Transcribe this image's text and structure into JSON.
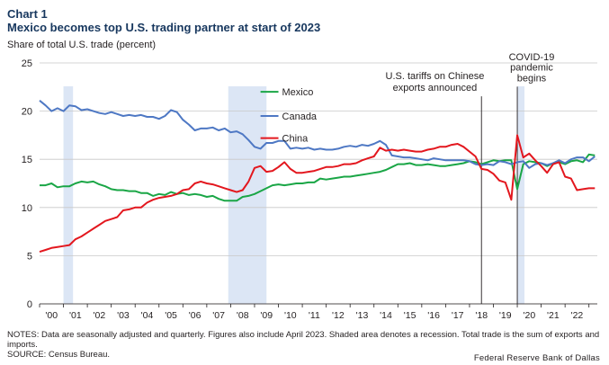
{
  "chart_label": "Chart 1",
  "chart_data": {
    "type": "line",
    "title": "Chart 1",
    "subtitle": "Mexico becomes top U.S. trading partner at start of 2023",
    "ylabel": "Share of total U.S. trade (percent)",
    "xlabel": "",
    "ylim": [
      0,
      25
    ],
    "y_ticks": [
      0,
      5,
      10,
      15,
      20,
      25
    ],
    "xlim": [
      2000,
      2023.35
    ],
    "x_ticks": [
      {
        "label": "'00",
        "value": 2000.5
      },
      {
        "label": "'01",
        "value": 2001.5
      },
      {
        "label": "'02",
        "value": 2002.5
      },
      {
        "label": "'03",
        "value": 2003.5
      },
      {
        "label": "'04",
        "value": 2004.5
      },
      {
        "label": "'05",
        "value": 2005.5
      },
      {
        "label": "'06",
        "value": 2006.5
      },
      {
        "label": "'07",
        "value": 2007.5
      },
      {
        "label": "'08",
        "value": 2008.5
      },
      {
        "label": "'09",
        "value": 2009.5
      },
      {
        "label": "'10",
        "value": 2010.5
      },
      {
        "label": "'11",
        "value": 2011.5
      },
      {
        "label": "'12",
        "value": 2012.5
      },
      {
        "label": "'13",
        "value": 2013.5
      },
      {
        "label": "'14",
        "value": 2014.5
      },
      {
        "label": "'15",
        "value": 2015.5
      },
      {
        "label": "'16",
        "value": 2016.5
      },
      {
        "label": "'17",
        "value": 2017.5
      },
      {
        "label": "'18",
        "value": 2018.5
      },
      {
        "label": "'19",
        "value": 2019.5
      },
      {
        "label": "'20",
        "value": 2020.5
      },
      {
        "label": "'21",
        "value": 2021.5
      },
      {
        "label": "'22",
        "value": 2022.5
      }
    ],
    "recessions": [
      {
        "start": 2001.0,
        "end": 2001.4
      },
      {
        "start": 2007.9,
        "end": 2009.5
      },
      {
        "start": 2020.0,
        "end": 2020.3
      }
    ],
    "events": [
      {
        "x": 2018.5,
        "label_lines": [
          "U.S. tariffs on Chinese",
          "exports announced"
        ],
        "label_x": 2016.55,
        "label_y_lines": [
          23.3,
          22.1
        ]
      },
      {
        "x": 2020.0,
        "label_lines": [
          "COVID-19",
          "pandemic",
          "begins"
        ],
        "label_x": 2020.6,
        "label_y_lines": [
          25.3,
          24.2,
          23.1
        ]
      }
    ],
    "legend": {
      "placement": "top-center",
      "entries": [
        {
          "name": "Mexico",
          "line_x": [
            2009.25,
            2010.0
          ],
          "y": 22.0
        },
        {
          "name": "Canada",
          "line_x": [
            2009.25,
            2010.0
          ],
          "y": 19.5
        },
        {
          "name": "China",
          "line_x": [
            2009.25,
            2010.0
          ],
          "y": 17.2
        }
      ]
    },
    "series": [
      {
        "name": "Mexico",
        "color": "#1aa646",
        "x": [
          2000.0,
          2000.25,
          2000.5,
          2000.75,
          2001.0,
          2001.25,
          2001.5,
          2001.75,
          2002.0,
          2002.25,
          2002.5,
          2002.75,
          2003.0,
          2003.25,
          2003.5,
          2003.75,
          2004.0,
          2004.25,
          2004.5,
          2004.75,
          2005.0,
          2005.25,
          2005.5,
          2005.75,
          2006.0,
          2006.25,
          2006.5,
          2006.75,
          2007.0,
          2007.25,
          2007.5,
          2007.75,
          2008.0,
          2008.25,
          2008.5,
          2008.75,
          2009.0,
          2009.25,
          2009.5,
          2009.75,
          2010.0,
          2010.25,
          2010.5,
          2010.75,
          2011.0,
          2011.25,
          2011.5,
          2011.75,
          2012.0,
          2012.25,
          2012.5,
          2012.75,
          2013.0,
          2013.25,
          2013.5,
          2013.75,
          2014.0,
          2014.25,
          2014.5,
          2014.75,
          2015.0,
          2015.25,
          2015.5,
          2015.75,
          2016.0,
          2016.25,
          2016.5,
          2016.75,
          2017.0,
          2017.25,
          2017.5,
          2017.75,
          2018.0,
          2018.25,
          2018.5,
          2018.75,
          2019.0,
          2019.25,
          2019.5,
          2019.75,
          2020.0,
          2020.25,
          2020.5,
          2020.75,
          2021.0,
          2021.25,
          2021.5,
          2021.75,
          2022.0,
          2022.25,
          2022.5,
          2022.75,
          2023.0,
          2023.25
        ],
        "values": [
          12.3,
          12.3,
          12.5,
          12.1,
          12.2,
          12.2,
          12.5,
          12.7,
          12.6,
          12.7,
          12.4,
          12.2,
          11.9,
          11.8,
          11.8,
          11.7,
          11.7,
          11.5,
          11.5,
          11.2,
          11.4,
          11.3,
          11.6,
          11.4,
          11.5,
          11.3,
          11.4,
          11.3,
          11.1,
          11.2,
          10.9,
          10.7,
          10.7,
          10.7,
          11.1,
          11.2,
          11.4,
          11.7,
          12.0,
          12.3,
          12.4,
          12.3,
          12.4,
          12.5,
          12.5,
          12.6,
          12.6,
          13.0,
          12.9,
          13.0,
          13.1,
          13.2,
          13.2,
          13.3,
          13.4,
          13.5,
          13.6,
          13.7,
          13.9,
          14.2,
          14.5,
          14.5,
          14.6,
          14.4,
          14.4,
          14.5,
          14.4,
          14.3,
          14.3,
          14.4,
          14.5,
          14.6,
          14.8,
          14.7,
          14.5,
          14.7,
          14.9,
          14.8,
          14.9,
          14.9,
          11.9,
          14.5,
          14.8,
          14.7,
          14.6,
          14.3,
          14.6,
          14.7,
          14.5,
          14.8,
          14.9,
          14.7,
          15.5,
          15.4
        ]
      },
      {
        "name": "Canada",
        "color": "#4e78c4",
        "x": [
          2000.0,
          2000.25,
          2000.5,
          2000.75,
          2001.0,
          2001.25,
          2001.5,
          2001.75,
          2002.0,
          2002.25,
          2002.5,
          2002.75,
          2003.0,
          2003.25,
          2003.5,
          2003.75,
          2004.0,
          2004.25,
          2004.5,
          2004.75,
          2005.0,
          2005.25,
          2005.5,
          2005.75,
          2006.0,
          2006.25,
          2006.5,
          2006.75,
          2007.0,
          2007.25,
          2007.5,
          2007.75,
          2008.0,
          2008.25,
          2008.5,
          2008.75,
          2009.0,
          2009.25,
          2009.5,
          2009.75,
          2010.0,
          2010.25,
          2010.5,
          2010.75,
          2011.0,
          2011.25,
          2011.5,
          2011.75,
          2012.0,
          2012.25,
          2012.5,
          2012.75,
          2013.0,
          2013.25,
          2013.5,
          2013.75,
          2014.0,
          2014.25,
          2014.5,
          2014.75,
          2015.0,
          2015.25,
          2015.5,
          2015.75,
          2016.0,
          2016.25,
          2016.5,
          2016.75,
          2017.0,
          2017.25,
          2017.5,
          2017.75,
          2018.0,
          2018.25,
          2018.5,
          2018.75,
          2019.0,
          2019.25,
          2019.5,
          2019.75,
          2020.0,
          2020.25,
          2020.5,
          2020.75,
          2021.0,
          2021.25,
          2021.5,
          2021.75,
          2022.0,
          2022.25,
          2022.5,
          2022.75,
          2023.0,
          2023.25
        ],
        "values": [
          21.1,
          20.6,
          20.0,
          20.3,
          20.0,
          20.6,
          20.5,
          20.1,
          20.2,
          20.0,
          19.8,
          19.7,
          19.9,
          19.7,
          19.5,
          19.6,
          19.5,
          19.6,
          19.4,
          19.4,
          19.2,
          19.5,
          20.1,
          19.9,
          19.1,
          18.6,
          18.0,
          18.2,
          18.2,
          18.3,
          18.0,
          18.2,
          17.8,
          17.9,
          17.6,
          17.0,
          16.3,
          16.1,
          16.7,
          16.7,
          16.9,
          16.9,
          16.1,
          16.2,
          16.1,
          16.2,
          16.0,
          16.1,
          16.0,
          16.0,
          16.1,
          16.3,
          16.4,
          16.3,
          16.5,
          16.4,
          16.6,
          16.9,
          16.5,
          15.4,
          15.3,
          15.2,
          15.2,
          15.1,
          15.0,
          14.9,
          15.1,
          15.0,
          14.9,
          14.9,
          14.9,
          14.9,
          14.8,
          14.5,
          14.4,
          14.5,
          14.4,
          14.8,
          14.7,
          14.5,
          14.7,
          14.8,
          14.1,
          14.5,
          14.6,
          14.4,
          14.6,
          14.9,
          14.6,
          15.0,
          15.2,
          15.2,
          14.8,
          15.3
        ]
      },
      {
        "name": "China",
        "color": "#e3171e",
        "x": [
          2000.0,
          2000.25,
          2000.5,
          2000.75,
          2001.0,
          2001.25,
          2001.5,
          2001.75,
          2002.0,
          2002.25,
          2002.5,
          2002.75,
          2003.0,
          2003.25,
          2003.5,
          2003.75,
          2004.0,
          2004.25,
          2004.5,
          2004.75,
          2005.0,
          2005.25,
          2005.5,
          2005.75,
          2006.0,
          2006.25,
          2006.5,
          2006.75,
          2007.0,
          2007.25,
          2007.5,
          2007.75,
          2008.0,
          2008.25,
          2008.5,
          2008.75,
          2009.0,
          2009.25,
          2009.5,
          2009.75,
          2010.0,
          2010.25,
          2010.5,
          2010.75,
          2011.0,
          2011.25,
          2011.5,
          2011.75,
          2012.0,
          2012.25,
          2012.5,
          2012.75,
          2013.0,
          2013.25,
          2013.5,
          2013.75,
          2014.0,
          2014.25,
          2014.5,
          2014.75,
          2015.0,
          2015.25,
          2015.5,
          2015.75,
          2016.0,
          2016.25,
          2016.5,
          2016.75,
          2017.0,
          2017.25,
          2017.5,
          2017.75,
          2018.0,
          2018.25,
          2018.5,
          2018.75,
          2019.0,
          2019.25,
          2019.5,
          2019.75,
          2020.0,
          2020.25,
          2020.5,
          2020.75,
          2021.0,
          2021.25,
          2021.5,
          2021.75,
          2022.0,
          2022.25,
          2022.5,
          2022.75,
          2023.0,
          2023.25
        ],
        "values": [
          5.4,
          5.6,
          5.8,
          5.9,
          6.0,
          6.1,
          6.7,
          7.0,
          7.4,
          7.8,
          8.2,
          8.6,
          8.8,
          9.0,
          9.7,
          9.8,
          10.0,
          10.0,
          10.5,
          10.8,
          11.0,
          11.1,
          11.2,
          11.4,
          11.8,
          11.9,
          12.5,
          12.7,
          12.5,
          12.4,
          12.2,
          12.0,
          11.8,
          11.6,
          11.8,
          12.7,
          14.1,
          14.3,
          13.7,
          13.8,
          14.2,
          14.7,
          14.0,
          13.6,
          13.6,
          13.7,
          13.8,
          14.0,
          14.2,
          14.2,
          14.3,
          14.5,
          14.5,
          14.6,
          14.9,
          15.1,
          15.3,
          16.2,
          15.9,
          16.0,
          15.9,
          16.0,
          15.9,
          15.8,
          15.8,
          16.0,
          16.1,
          16.3,
          16.3,
          16.5,
          16.6,
          16.3,
          15.8,
          15.3,
          14.0,
          13.9,
          13.5,
          12.8,
          12.6,
          10.8,
          17.5,
          15.2,
          15.6,
          14.9,
          14.3,
          13.6,
          14.5,
          14.7,
          13.2,
          13.0,
          11.8,
          11.9,
          12.0,
          12.0
        ]
      }
    ]
  },
  "notes": "NOTES: Data are seasonally adjusted and quarterly. Figures also include April 2023. Shaded area denotes a recession. Total trade is the sum of exports and imports.",
  "source": "SOURCE: Census Bureau.",
  "credit": "Federal Reserve Bank of Dallas",
  "colors": {
    "title": "#17375e",
    "recession_shade": "#dce6f5",
    "gridline": "#c8c8c8",
    "event_line": "#231f20"
  }
}
